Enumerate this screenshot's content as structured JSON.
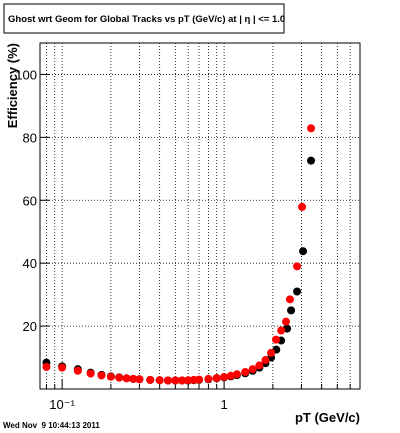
{
  "chart_data": {
    "type": "scatter",
    "title": "Ghost wrt Geom for Global Tracks vs pT (GeV/c) at |  η | <= 1.0",
    "x_label": "pT (GeV/c)",
    "y_label": "Efficiency (%)",
    "timestamp": "Wed Nov  9 10:44:13 2011",
    "log_x": true,
    "grid": true,
    "xlim": [
      0.073,
      6.9
    ],
    "ylim": [
      0,
      110
    ],
    "xticks": [
      {
        "value": 0.1,
        "label": "10⁻¹"
      },
      1
    ],
    "xminor_ticks": [
      0.08,
      0.09,
      0.2,
      0.3,
      0.4,
      0.5,
      0.6,
      0.7,
      0.8,
      0.9,
      2,
      3,
      4,
      5,
      6
    ],
    "yticks": [
      20,
      40,
      60,
      80,
      100
    ],
    "series": [
      {
        "color": "#000000",
        "x": [
          0.08,
          0.1,
          0.125,
          0.15,
          0.175,
          0.2,
          0.225,
          0.25,
          0.275,
          0.3,
          0.35,
          0.4,
          0.45,
          0.5,
          0.55,
          0.6,
          0.65,
          0.7,
          0.8,
          0.9,
          1.0,
          1.1,
          1.2,
          1.35,
          1.5,
          1.65,
          1.8,
          1.95,
          2.1,
          2.25,
          2.45,
          2.59,
          2.82,
          3.07,
          3.44
        ],
        "values": [
          8.4,
          7.2,
          6.3,
          5.2,
          4.5,
          4.0,
          3.7,
          3.4,
          3.2,
          3.1,
          2.9,
          2.8,
          2.7,
          2.7,
          2.7,
          2.7,
          2.8,
          2.9,
          3.1,
          3.4,
          3.7,
          4.0,
          4.4,
          5.0,
          5.8,
          6.8,
          8.2,
          10.0,
          12.5,
          15.4,
          19.2,
          25,
          31,
          43.8,
          72.6
        ]
      },
      {
        "color": "#ff0000",
        "x": [
          0.08,
          0.1,
          0.125,
          0.15,
          0.175,
          0.2,
          0.225,
          0.25,
          0.275,
          0.3,
          0.35,
          0.4,
          0.45,
          0.5,
          0.55,
          0.6,
          0.65,
          0.7,
          0.8,
          0.9,
          1.0,
          1.1,
          1.2,
          1.35,
          1.5,
          1.65,
          1.8,
          1.95,
          2.09,
          2.25,
          2.41,
          2.55,
          2.82,
          3.03,
          3.44
        ],
        "values": [
          7.0,
          6.8,
          5.8,
          4.9,
          4.3,
          3.9,
          3.6,
          3.4,
          3.2,
          3.1,
          2.9,
          2.8,
          2.7,
          2.7,
          2.7,
          2.8,
          2.9,
          3.0,
          3.2,
          3.5,
          3.8,
          4.2,
          4.7,
          5.4,
          6.3,
          7.5,
          9.2,
          11.5,
          15.7,
          18.6,
          21.4,
          28.5,
          39,
          57.9,
          82.9
        ]
      }
    ]
  }
}
